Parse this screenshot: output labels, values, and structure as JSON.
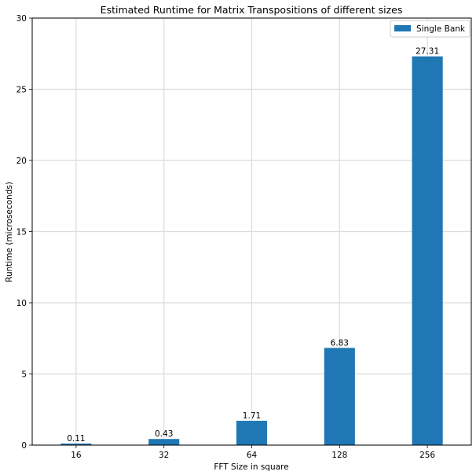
{
  "chart_data": {
    "type": "bar",
    "title": "Estimated Runtime for Matrix Transpositions of different sizes",
    "xlabel": "FFT Size in square",
    "ylabel": "Runtime (microseconds)",
    "categories": [
      "16",
      "32",
      "64",
      "128",
      "256"
    ],
    "series": [
      {
        "name": "Single Bank",
        "values": [
          0.11,
          0.43,
          1.71,
          6.83,
          27.31
        ],
        "color": "#1f77b4"
      }
    ],
    "data_labels": [
      "0.11",
      "0.43",
      "1.71",
      "6.83",
      "27.31"
    ],
    "ylim": [
      0,
      30
    ],
    "yticks": [
      0,
      5,
      10,
      15,
      20,
      25,
      30
    ],
    "grid": true,
    "legend_position": "top-right"
  }
}
